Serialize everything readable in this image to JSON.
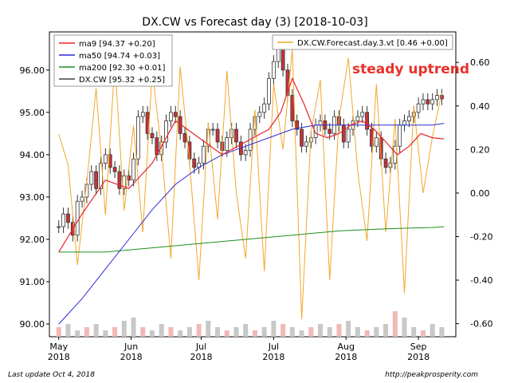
{
  "chart_data": {
    "type": "line",
    "title": "DX.CW vs Forecast day (3)  [2018-10-03]",
    "annotation": "steady uptrend",
    "footer_left": "Last update Oct  4, 2018",
    "footer_right": "http://peakprosperity.com",
    "left_axis": {
      "ylim": [
        89.7,
        96.9
      ],
      "ticks": [
        "90.00",
        "91.00",
        "92.00",
        "93.00",
        "94.00",
        "95.00",
        "96.00"
      ]
    },
    "right_axis": {
      "ylim": [
        -0.66,
        0.74
      ],
      "ticks": [
        "-0.60",
        "-0.40",
        "-0.20",
        "0.00",
        "0.20",
        "0.40",
        "0.60"
      ]
    },
    "x_ticks": [
      {
        "label1": "May",
        "label2": "2018",
        "day": 0
      },
      {
        "label1": "Jun",
        "label2": "2018",
        "day": 31
      },
      {
        "label1": "Jul",
        "label2": "2018",
        "day": 61
      },
      {
        "label1": "Jul",
        "label2": "2018",
        "day": 92
      },
      {
        "label1": "Aug",
        "label2": "2018",
        "day": 123
      },
      {
        "label1": "Sep",
        "label2": "2018",
        "day": 154
      }
    ],
    "xlim_days": [
      -4,
      170
    ],
    "legend_main": [
      {
        "label": "ma9 [94.37 +0.20]",
        "color": "#e8232a"
      },
      {
        "label": "ma50 [94.74 +0.03]",
        "color": "#2c2cd6"
      },
      {
        "label": "ma200 [92.30 +0.01]",
        "color": "#1e8f1e"
      },
      {
        "label": "DX.CW [95.32 +0.25]",
        "color": "#444444"
      }
    ],
    "legend_right": [
      {
        "label": "DX.CW.Forecast.day.3.vt [0.46 +0.00]",
        "color": "#f2a72a"
      }
    ],
    "series": [
      {
        "name": "DX.CW",
        "x": [
          0,
          2,
          4,
          6,
          8,
          10,
          12,
          14,
          16,
          18,
          20,
          22,
          24,
          26,
          28,
          30,
          32,
          34,
          36,
          38,
          40,
          42,
          44,
          46,
          48,
          50,
          52,
          54,
          56,
          58,
          60,
          62,
          64,
          66,
          68,
          70,
          72,
          74,
          76,
          78,
          80,
          82,
          84,
          86,
          88,
          90,
          92,
          94,
          96,
          98,
          100,
          102,
          104,
          106,
          108,
          110,
          112,
          114,
          116,
          118,
          120,
          122,
          124,
          126,
          128,
          130,
          132,
          134,
          136,
          138,
          140,
          142,
          144,
          146,
          148,
          150,
          152,
          154,
          156,
          158,
          160,
          162,
          164
        ],
        "values": [
          92.3,
          92.6,
          92.4,
          92.1,
          92.9,
          93.0,
          93.3,
          93.6,
          93.2,
          93.8,
          94.0,
          93.7,
          93.6,
          93.2,
          93.5,
          93.4,
          93.9,
          94.9,
          95.0,
          94.5,
          94.4,
          94.0,
          94.3,
          94.8,
          95.0,
          94.9,
          94.5,
          94.3,
          93.9,
          93.7,
          93.8,
          94.2,
          94.6,
          94.6,
          94.3,
          94.1,
          94.4,
          94.6,
          94.3,
          94.0,
          94.1,
          94.6,
          94.9,
          95.0,
          95.2,
          95.8,
          96.2,
          96.5,
          96.0,
          95.4,
          94.8,
          94.6,
          94.2,
          94.3,
          94.4,
          94.7,
          94.8,
          94.6,
          94.5,
          94.9,
          94.7,
          94.3,
          94.6,
          94.8,
          94.9,
          95.0,
          94.6,
          94.2,
          94.4,
          93.9,
          93.7,
          93.8,
          94.2,
          94.7,
          94.8,
          94.9,
          95.0,
          95.2,
          95.3,
          95.2,
          95.3,
          95.4,
          95.32
        ]
      },
      {
        "name": "ma9",
        "x": [
          0,
          10,
          20,
          30,
          40,
          50,
          60,
          70,
          80,
          90,
          95,
          100,
          105,
          110,
          115,
          120,
          125,
          130,
          135,
          140,
          145,
          150,
          155,
          160,
          165
        ],
        "values": [
          91.7,
          92.6,
          93.4,
          93.2,
          93.8,
          94.8,
          94.4,
          94.0,
          94.3,
          94.6,
          95.0,
          95.8,
          95.2,
          94.5,
          94.4,
          94.5,
          94.7,
          94.8,
          94.6,
          94.3,
          94.0,
          94.2,
          94.5,
          94.4,
          94.37
        ]
      },
      {
        "name": "ma50",
        "x": [
          0,
          10,
          20,
          30,
          40,
          50,
          60,
          70,
          80,
          90,
          100,
          110,
          120,
          130,
          140,
          150,
          160,
          165
        ],
        "values": [
          90.0,
          90.6,
          91.3,
          92.0,
          92.7,
          93.3,
          93.7,
          94.0,
          94.2,
          94.4,
          94.6,
          94.7,
          94.7,
          94.7,
          94.7,
          94.7,
          94.7,
          94.74
        ]
      },
      {
        "name": "ma200",
        "x": [
          0,
          20,
          40,
          60,
          80,
          100,
          120,
          140,
          160,
          165
        ],
        "values": [
          91.7,
          91.7,
          91.8,
          91.9,
          92.0,
          92.1,
          92.2,
          92.25,
          92.28,
          92.3
        ]
      },
      {
        "name": "DX.CW.Forecast.day.3.vt",
        "x": [
          0,
          4,
          8,
          12,
          16,
          20,
          24,
          28,
          32,
          36,
          40,
          44,
          48,
          52,
          56,
          60,
          64,
          68,
          72,
          76,
          80,
          84,
          88,
          92,
          96,
          100,
          104,
          108,
          112,
          116,
          120,
          124,
          128,
          132,
          136,
          140,
          144,
          148,
          152,
          156,
          160,
          164
        ],
        "values": [
          0.27,
          0.13,
          -0.33,
          0.05,
          0.48,
          -0.1,
          0.6,
          -0.08,
          0.31,
          -0.18,
          0.56,
          0.2,
          -0.3,
          0.58,
          0.14,
          -0.4,
          0.32,
          -0.12,
          0.56,
          0.0,
          -0.3,
          0.38,
          -0.36,
          0.5,
          0.2,
          0.66,
          -0.58,
          0.28,
          0.52,
          -0.4,
          0.34,
          0.62,
          0.1,
          -0.22,
          0.5,
          -0.18,
          0.34,
          -0.46,
          0.4,
          0.0,
          0.26,
          0.46
        ]
      },
      {
        "name": "volume",
        "x": [
          0,
          4,
          8,
          12,
          16,
          20,
          24,
          28,
          32,
          36,
          40,
          44,
          48,
          52,
          56,
          60,
          64,
          68,
          72,
          76,
          80,
          84,
          88,
          92,
          96,
          100,
          104,
          108,
          112,
          116,
          120,
          124,
          128,
          132,
          136,
          140,
          144,
          148,
          152,
          156,
          160,
          164
        ],
        "values": [
          0.3,
          0.4,
          0.2,
          0.3,
          0.4,
          0.2,
          0.3,
          0.5,
          0.6,
          0.3,
          0.2,
          0.4,
          0.3,
          0.2,
          0.3,
          0.4,
          0.5,
          0.3,
          0.2,
          0.3,
          0.4,
          0.2,
          0.3,
          0.5,
          0.4,
          0.3,
          0.2,
          0.3,
          0.4,
          0.3,
          0.4,
          0.5,
          0.3,
          0.2,
          0.3,
          0.4,
          0.8,
          0.6,
          0.3,
          0.2,
          0.4,
          0.3
        ]
      }
    ]
  }
}
